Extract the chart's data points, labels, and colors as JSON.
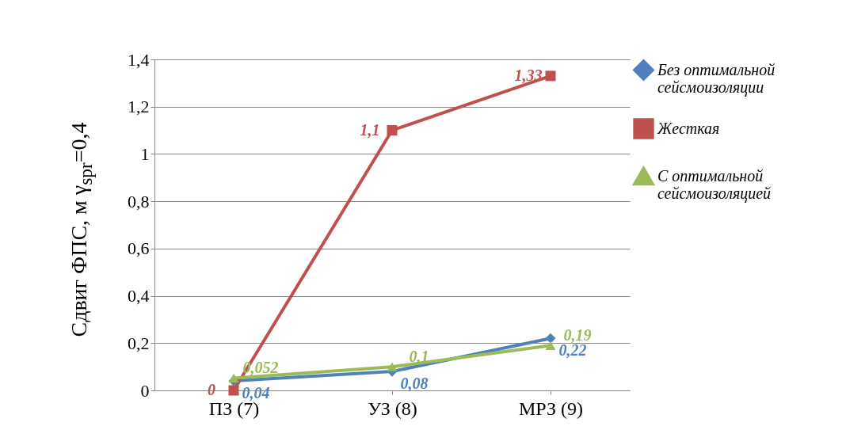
{
  "chart_data": {
    "type": "line",
    "ylabel": "Сдвиг ФПС, м γ$_{spr}$=0,4",
    "categories": [
      "ПЗ (7)",
      "УЗ (8)",
      "МРЗ (9)"
    ],
    "series": [
      {
        "name": "Без оптимальной сейсмоизоляции",
        "color": "#4f81bd",
        "marker": "diamond",
        "values": [
          0.04,
          0.08,
          0.22
        ],
        "value_labels": [
          "0,04",
          "0,08",
          "0,22"
        ]
      },
      {
        "name": "Жесткая",
        "color": "#c0504d",
        "marker": "square",
        "values": [
          0,
          1.1,
          1.33
        ],
        "value_labels": [
          "0",
          "1,1",
          "1,33"
        ]
      },
      {
        "name": "С оптимальной сейсмоизоляцией",
        "color": "#9bbb59",
        "marker": "triangle",
        "values": [
          0.052,
          0.1,
          0.19
        ],
        "value_labels": [
          "0,052",
          "0,1",
          "0,19"
        ]
      }
    ],
    "ylim": [
      0,
      1.4
    ],
    "yticks": [
      {
        "value": 0,
        "label": "0"
      },
      {
        "value": 0.2,
        "label": "0,2"
      },
      {
        "value": 0.4,
        "label": "0,4"
      },
      {
        "value": 0.6,
        "label": "0,6"
      },
      {
        "value": 0.8,
        "label": "0,8"
      },
      {
        "value": 1,
        "label": "1"
      },
      {
        "value": 1.2,
        "label": "1,2"
      },
      {
        "value": 1.4,
        "label": "1,4"
      }
    ],
    "grid": "y",
    "legend": "right"
  }
}
